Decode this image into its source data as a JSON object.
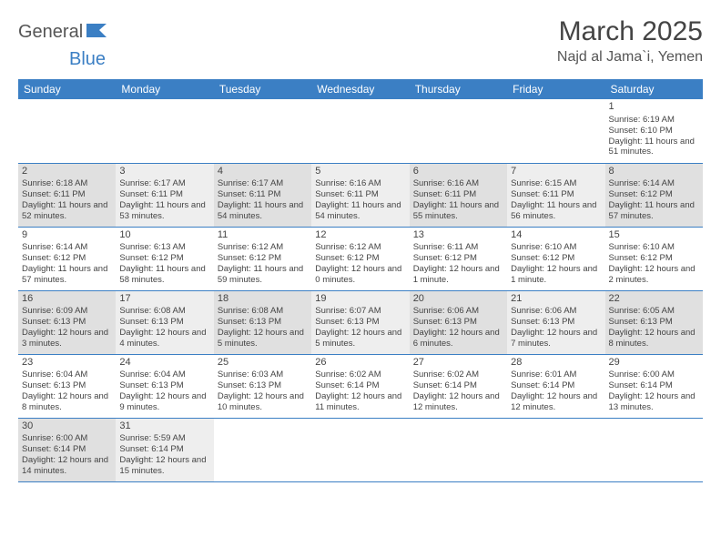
{
  "logo": {
    "part1": "General",
    "part2": "Blue"
  },
  "header": {
    "month_title": "March 2025",
    "location": "Najd al Jama`i, Yemen"
  },
  "colors": {
    "header_bg": "#3b7fc4",
    "header_fg": "#ffffff",
    "shade_dark": "#e0e0e0",
    "shade_light": "#eeeeee",
    "rule": "#3b7fc4"
  },
  "day_labels": [
    "Sunday",
    "Monday",
    "Tuesday",
    "Wednesday",
    "Thursday",
    "Friday",
    "Saturday"
  ],
  "weeks": [
    [
      null,
      null,
      null,
      null,
      null,
      null,
      {
        "n": "1",
        "sr": "Sunrise: 6:19 AM",
        "ss": "Sunset: 6:10 PM",
        "dl": "Daylight: 11 hours and 51 minutes.",
        "sh": 0
      }
    ],
    [
      {
        "n": "2",
        "sr": "Sunrise: 6:18 AM",
        "ss": "Sunset: 6:11 PM",
        "dl": "Daylight: 11 hours and 52 minutes.",
        "sh": 1
      },
      {
        "n": "3",
        "sr": "Sunrise: 6:17 AM",
        "ss": "Sunset: 6:11 PM",
        "dl": "Daylight: 11 hours and 53 minutes.",
        "sh": 2
      },
      {
        "n": "4",
        "sr": "Sunrise: 6:17 AM",
        "ss": "Sunset: 6:11 PM",
        "dl": "Daylight: 11 hours and 54 minutes.",
        "sh": 1
      },
      {
        "n": "5",
        "sr": "Sunrise: 6:16 AM",
        "ss": "Sunset: 6:11 PM",
        "dl": "Daylight: 11 hours and 54 minutes.",
        "sh": 2
      },
      {
        "n": "6",
        "sr": "Sunrise: 6:16 AM",
        "ss": "Sunset: 6:11 PM",
        "dl": "Daylight: 11 hours and 55 minutes.",
        "sh": 1
      },
      {
        "n": "7",
        "sr": "Sunrise: 6:15 AM",
        "ss": "Sunset: 6:11 PM",
        "dl": "Daylight: 11 hours and 56 minutes.",
        "sh": 2
      },
      {
        "n": "8",
        "sr": "Sunrise: 6:14 AM",
        "ss": "Sunset: 6:12 PM",
        "dl": "Daylight: 11 hours and 57 minutes.",
        "sh": 1
      }
    ],
    [
      {
        "n": "9",
        "sr": "Sunrise: 6:14 AM",
        "ss": "Sunset: 6:12 PM",
        "dl": "Daylight: 11 hours and 57 minutes.",
        "sh": 0
      },
      {
        "n": "10",
        "sr": "Sunrise: 6:13 AM",
        "ss": "Sunset: 6:12 PM",
        "dl": "Daylight: 11 hours and 58 minutes.",
        "sh": 0
      },
      {
        "n": "11",
        "sr": "Sunrise: 6:12 AM",
        "ss": "Sunset: 6:12 PM",
        "dl": "Daylight: 11 hours and 59 minutes.",
        "sh": 0
      },
      {
        "n": "12",
        "sr": "Sunrise: 6:12 AM",
        "ss": "Sunset: 6:12 PM",
        "dl": "Daylight: 12 hours and 0 minutes.",
        "sh": 0
      },
      {
        "n": "13",
        "sr": "Sunrise: 6:11 AM",
        "ss": "Sunset: 6:12 PM",
        "dl": "Daylight: 12 hours and 1 minute.",
        "sh": 0
      },
      {
        "n": "14",
        "sr": "Sunrise: 6:10 AM",
        "ss": "Sunset: 6:12 PM",
        "dl": "Daylight: 12 hours and 1 minute.",
        "sh": 0
      },
      {
        "n": "15",
        "sr": "Sunrise: 6:10 AM",
        "ss": "Sunset: 6:12 PM",
        "dl": "Daylight: 12 hours and 2 minutes.",
        "sh": 0
      }
    ],
    [
      {
        "n": "16",
        "sr": "Sunrise: 6:09 AM",
        "ss": "Sunset: 6:13 PM",
        "dl": "Daylight: 12 hours and 3 minutes.",
        "sh": 1
      },
      {
        "n": "17",
        "sr": "Sunrise: 6:08 AM",
        "ss": "Sunset: 6:13 PM",
        "dl": "Daylight: 12 hours and 4 minutes.",
        "sh": 2
      },
      {
        "n": "18",
        "sr": "Sunrise: 6:08 AM",
        "ss": "Sunset: 6:13 PM",
        "dl": "Daylight: 12 hours and 5 minutes.",
        "sh": 1
      },
      {
        "n": "19",
        "sr": "Sunrise: 6:07 AM",
        "ss": "Sunset: 6:13 PM",
        "dl": "Daylight: 12 hours and 5 minutes.",
        "sh": 2
      },
      {
        "n": "20",
        "sr": "Sunrise: 6:06 AM",
        "ss": "Sunset: 6:13 PM",
        "dl": "Daylight: 12 hours and 6 minutes.",
        "sh": 1
      },
      {
        "n": "21",
        "sr": "Sunrise: 6:06 AM",
        "ss": "Sunset: 6:13 PM",
        "dl": "Daylight: 12 hours and 7 minutes.",
        "sh": 2
      },
      {
        "n": "22",
        "sr": "Sunrise: 6:05 AM",
        "ss": "Sunset: 6:13 PM",
        "dl": "Daylight: 12 hours and 8 minutes.",
        "sh": 1
      }
    ],
    [
      {
        "n": "23",
        "sr": "Sunrise: 6:04 AM",
        "ss": "Sunset: 6:13 PM",
        "dl": "Daylight: 12 hours and 8 minutes.",
        "sh": 0
      },
      {
        "n": "24",
        "sr": "Sunrise: 6:04 AM",
        "ss": "Sunset: 6:13 PM",
        "dl": "Daylight: 12 hours and 9 minutes.",
        "sh": 0
      },
      {
        "n": "25",
        "sr": "Sunrise: 6:03 AM",
        "ss": "Sunset: 6:13 PM",
        "dl": "Daylight: 12 hours and 10 minutes.",
        "sh": 0
      },
      {
        "n": "26",
        "sr": "Sunrise: 6:02 AM",
        "ss": "Sunset: 6:14 PM",
        "dl": "Daylight: 12 hours and 11 minutes.",
        "sh": 0
      },
      {
        "n": "27",
        "sr": "Sunrise: 6:02 AM",
        "ss": "Sunset: 6:14 PM",
        "dl": "Daylight: 12 hours and 12 minutes.",
        "sh": 0
      },
      {
        "n": "28",
        "sr": "Sunrise: 6:01 AM",
        "ss": "Sunset: 6:14 PM",
        "dl": "Daylight: 12 hours and 12 minutes.",
        "sh": 0
      },
      {
        "n": "29",
        "sr": "Sunrise: 6:00 AM",
        "ss": "Sunset: 6:14 PM",
        "dl": "Daylight: 12 hours and 13 minutes.",
        "sh": 0
      }
    ],
    [
      {
        "n": "30",
        "sr": "Sunrise: 6:00 AM",
        "ss": "Sunset: 6:14 PM",
        "dl": "Daylight: 12 hours and 14 minutes.",
        "sh": 1
      },
      {
        "n": "31",
        "sr": "Sunrise: 5:59 AM",
        "ss": "Sunset: 6:14 PM",
        "dl": "Daylight: 12 hours and 15 minutes.",
        "sh": 2
      },
      null,
      null,
      null,
      null,
      null
    ]
  ]
}
